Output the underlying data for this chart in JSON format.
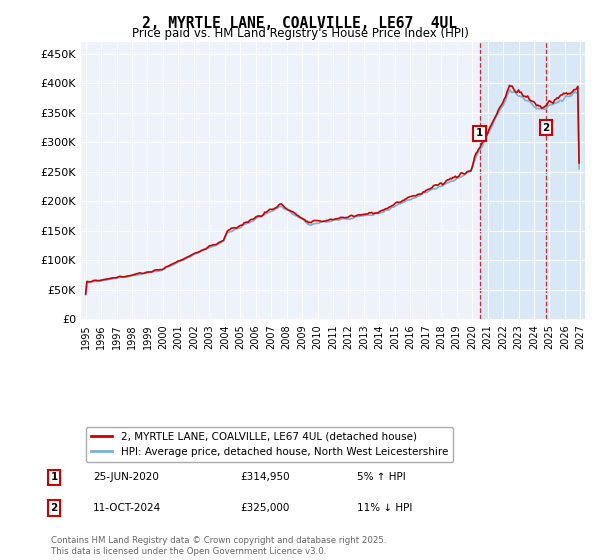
{
  "title": "2, MYRTLE LANE, COALVILLE, LE67  4UL",
  "subtitle": "Price paid vs. HM Land Registry's House Price Index (HPI)",
  "ylabel_ticks": [
    "£0",
    "£50K",
    "£100K",
    "£150K",
    "£200K",
    "£250K",
    "£300K",
    "£350K",
    "£400K",
    "£450K"
  ],
  "ytick_values": [
    0,
    50000,
    100000,
    150000,
    200000,
    250000,
    300000,
    350000,
    400000,
    450000
  ],
  "xlim_start": 1994.7,
  "xlim_end": 2027.3,
  "ylim": [
    0,
    470000
  ],
  "line1_color": "#cc0000",
  "line2_color": "#7ab0d4",
  "line1_label": "2, MYRTLE LANE, COALVILLE, LE67 4UL (detached house)",
  "line2_label": "HPI: Average price, detached house, North West Leicestershire",
  "marker1_x": 2020.48,
  "marker1_y": 314950,
  "marker1_label": "1",
  "marker1_date": "25-JUN-2020",
  "marker1_price": "£314,950",
  "marker1_hpi": "5% ↑ HPI",
  "marker2_x": 2024.78,
  "marker2_y": 325000,
  "marker2_label": "2",
  "marker2_date": "11-OCT-2024",
  "marker2_price": "£325,000",
  "marker2_hpi": "11% ↓ HPI",
  "shade_start": 2020.48,
  "shade_end": 2027.3,
  "background_color": "#ffffff",
  "plot_bg_color": "#eef3fb",
  "grid_color": "#ffffff",
  "shade_color": "#d0e4f5",
  "footer": "Contains HM Land Registry data © Crown copyright and database right 2025.\nThis data is licensed under the Open Government Licence v3.0."
}
